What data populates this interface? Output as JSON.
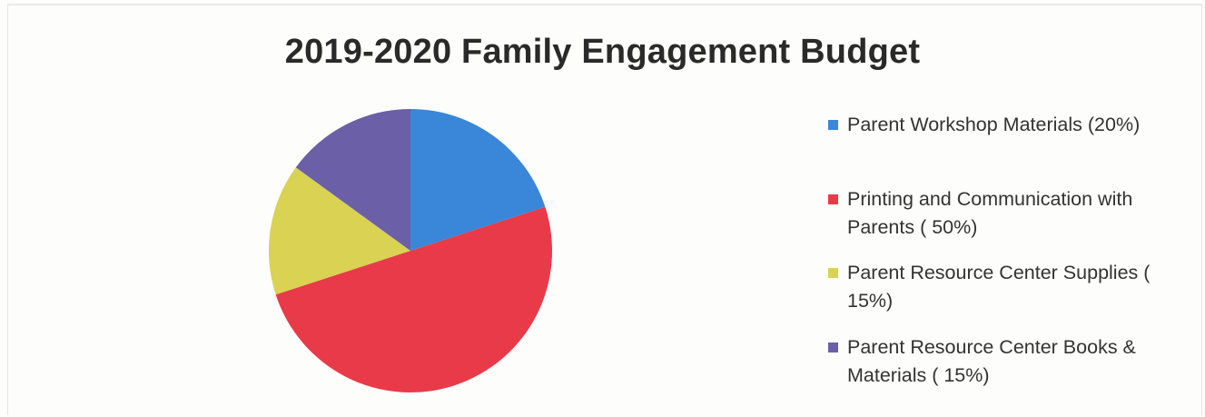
{
  "chart_data": {
    "type": "pie",
    "title": "2019-2020 Family Engagement Budget",
    "slices": [
      {
        "label": "Parent Workshop Materials (20%)",
        "value": 20,
        "color": "#3a86d9"
      },
      {
        "label": "Printing and Communication with Parents ( 50%)",
        "value": 50,
        "color": "#e83a48"
      },
      {
        "label": "Parent Resource Center Supplies ( 15%)",
        "value": 15,
        "color": "#d9d252"
      },
      {
        "label": "Parent Resource Center Books & Materials ( 15%)",
        "value": 15,
        "color": "#6b5fa8"
      }
    ],
    "legend_position": "right"
  }
}
